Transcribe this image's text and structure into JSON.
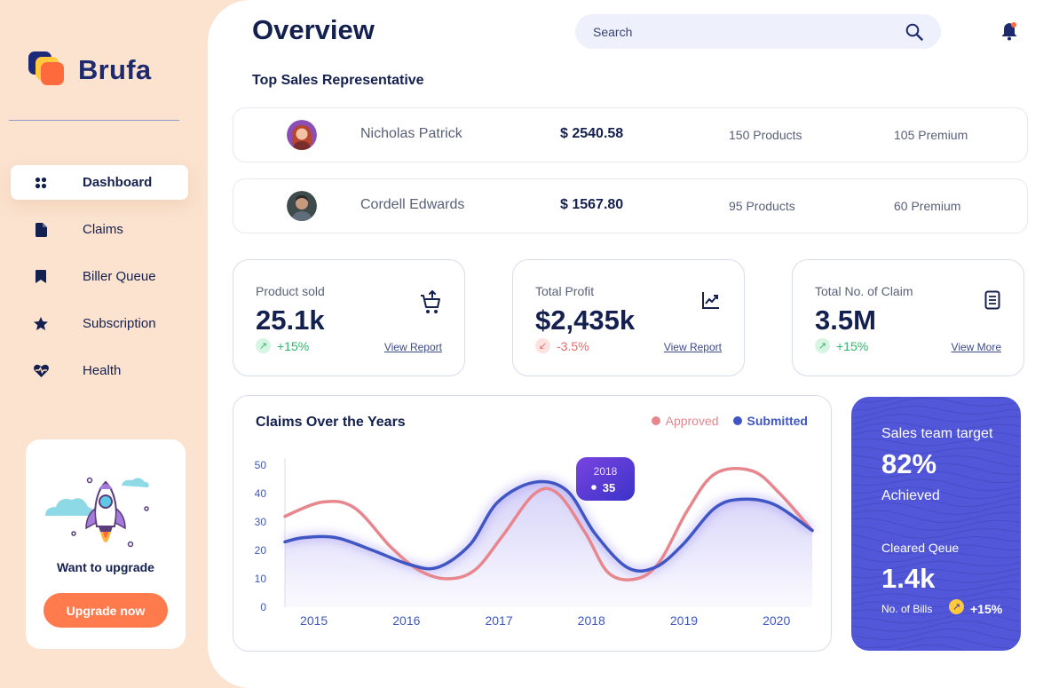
{
  "brand": {
    "name": "Brufa"
  },
  "sidebar": {
    "items": [
      {
        "label": "Dashboard",
        "icon": "dashboard-icon",
        "active": true
      },
      {
        "label": "Claims",
        "icon": "document-icon",
        "active": false
      },
      {
        "label": "Biller Queue",
        "icon": "bookmark-icon",
        "active": false
      },
      {
        "label": "Subscription",
        "icon": "star-icon",
        "active": false
      },
      {
        "label": "Health",
        "icon": "heart-pulse-icon",
        "active": false
      }
    ],
    "upgrade": {
      "text": "Want to upgrade",
      "button": "Upgrade now"
    }
  },
  "header": {
    "title": "Overview",
    "search_placeholder": "Search"
  },
  "top_sales": {
    "title": "Top Sales Representative",
    "rows": [
      {
        "name": "Nicholas Patrick",
        "amount": "$ 2540.58",
        "products": "150 Products",
        "premium": "105 Premium"
      },
      {
        "name": "Cordell Edwards",
        "amount": "$ 1567.80",
        "products": "95 Products",
        "premium": "60 Premium"
      }
    ]
  },
  "stats": [
    {
      "label": "Product sold",
      "value": "25.1k",
      "trend": "+15%",
      "trend_dir": "up",
      "link": "View Report",
      "icon": "cart-icon"
    },
    {
      "label": "Total Profit",
      "value": "$2,435k",
      "trend": "-3.5%",
      "trend_dir": "down",
      "link": "View Report",
      "icon": "chart-up-icon"
    },
    {
      "label": "Total No. of Claim",
      "value": "3.5M",
      "trend": "+15%",
      "trend_dir": "up",
      "link": "View More",
      "icon": "clipboard-icon"
    }
  ],
  "claims_chart": {
    "title": "Claims Over the Years",
    "legend": [
      {
        "name": "Approved",
        "color": "#e8868e"
      },
      {
        "name": "Submitted",
        "color": "#3f56c4"
      }
    ],
    "tooltip": {
      "year": "2018",
      "value": "35"
    }
  },
  "chart_data": {
    "type": "line",
    "title": "Claims Over the Years",
    "x": [
      "2015",
      "2016",
      "2017",
      "2018",
      "2019",
      "2020"
    ],
    "yticks": [
      0,
      10,
      20,
      30,
      40,
      50
    ],
    "ylim": [
      0,
      50
    ],
    "xlim": [
      2014.85,
      2020.55
    ],
    "series": [
      {
        "name": "Approved",
        "color": "#e8868e",
        "points": [
          [
            2014.85,
            32
          ],
          [
            2015.25,
            37
          ],
          [
            2015.6,
            35
          ],
          [
            2016.0,
            21
          ],
          [
            2016.3,
            13
          ],
          [
            2016.6,
            10
          ],
          [
            2016.9,
            13
          ],
          [
            2017.2,
            25
          ],
          [
            2017.55,
            40
          ],
          [
            2017.8,
            40
          ],
          [
            2018.1,
            26
          ],
          [
            2018.35,
            12
          ],
          [
            2018.65,
            10
          ],
          [
            2018.9,
            16
          ],
          [
            2019.2,
            34
          ],
          [
            2019.5,
            47
          ],
          [
            2019.9,
            48
          ],
          [
            2020.2,
            40
          ],
          [
            2020.55,
            27
          ]
        ]
      },
      {
        "name": "Submitted",
        "color": "#3f56c4",
        "points": [
          [
            2014.85,
            23
          ],
          [
            2015.05,
            24.5
          ],
          [
            2015.4,
            24.5
          ],
          [
            2015.8,
            20
          ],
          [
            2016.2,
            15
          ],
          [
            2016.5,
            14
          ],
          [
            2016.85,
            22
          ],
          [
            2017.15,
            37
          ],
          [
            2017.55,
            44
          ],
          [
            2017.9,
            41
          ],
          [
            2018.2,
            26
          ],
          [
            2018.55,
            14
          ],
          [
            2018.85,
            14
          ],
          [
            2019.15,
            22
          ],
          [
            2019.5,
            35
          ],
          [
            2019.8,
            38
          ],
          [
            2020.15,
            36
          ],
          [
            2020.55,
            27
          ]
        ]
      }
    ],
    "grid": false,
    "legend_position": "top-right"
  },
  "target": {
    "label": "Sales team target",
    "percent": "82%",
    "sub": "Achieved",
    "cleared_label": "Cleared Qeue",
    "cleared_value": "1.4k",
    "bills_label": "No. of Bills",
    "bills_pct": "+15%"
  }
}
